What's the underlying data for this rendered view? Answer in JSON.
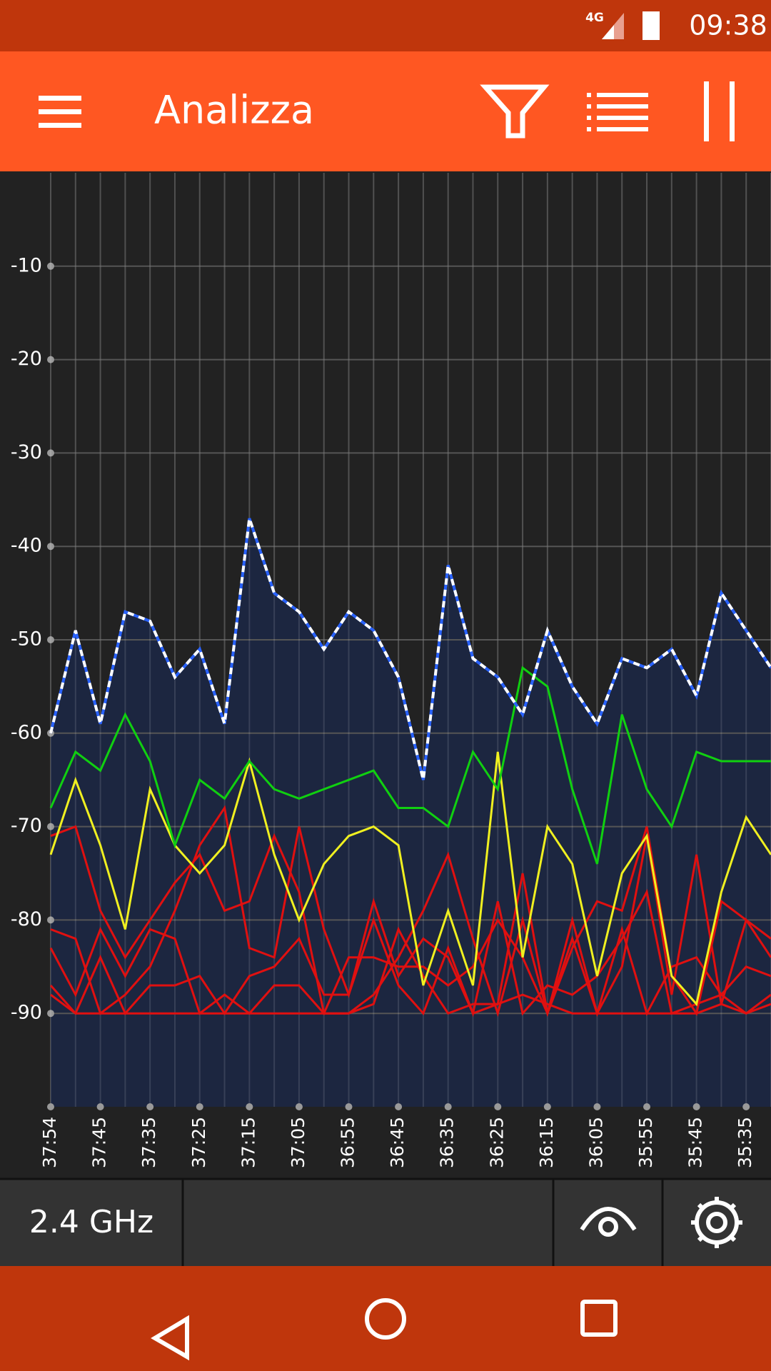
{
  "status_bar": {
    "network": "4G",
    "time": "09:38"
  },
  "app_bar": {
    "title": "Analizza"
  },
  "chart_data": {
    "type": "line",
    "categories": [
      "37:54",
      null,
      "37:45",
      null,
      "37:35",
      null,
      "37:25",
      null,
      "37:15",
      null,
      "37:05",
      null,
      "36:55",
      null,
      "36:45",
      null,
      "36:35",
      null,
      "36:25",
      null,
      "36:15",
      null,
      "36:05",
      null,
      "35:55",
      null,
      "35:45",
      null,
      "35:35",
      null
    ],
    "ylim": [
      -100,
      0
    ],
    "yticks": [
      -90,
      -80,
      -70,
      -60,
      -50,
      -40,
      -30,
      -20,
      -10
    ],
    "grid": true,
    "series": [
      {
        "color": "#e01010",
        "values": [
          -87,
          -90,
          -90,
          -90,
          -90,
          -90,
          -90,
          -90,
          -90,
          -90,
          -90,
          -90,
          -90,
          -89,
          -81,
          -86,
          -90,
          -89,
          -89,
          -88,
          -89,
          -90,
          -90,
          -90,
          -90,
          -90,
          -90,
          -89,
          -90,
          -89
        ]
      },
      {
        "color": "#e01010",
        "values": [
          -88,
          -90,
          -84,
          -90,
          -87,
          -87,
          -86,
          -90,
          -86,
          -85,
          -82,
          -88,
          -88,
          -80,
          -87,
          -90,
          -83,
          -90,
          -78,
          -90,
          -87,
          -88,
          -86,
          -82,
          -77,
          -90,
          -89,
          -88,
          -85,
          -86
        ]
      },
      {
        "color": "#e01010",
        "values": [
          -83,
          -88,
          -81,
          -86,
          -81,
          -82,
          -90,
          -88,
          -90,
          -87,
          -87,
          -90,
          -84,
          -84,
          -85,
          -85,
          -87,
          -85,
          -80,
          -84,
          -90,
          -82,
          -90,
          -81,
          -90,
          -85,
          -84,
          -88,
          -90,
          -88
        ]
      },
      {
        "color": "#e01010",
        "values": [
          -81,
          -82,
          -90,
          -88,
          -85,
          -79,
          -72,
          -68,
          -83,
          -84,
          -70,
          -81,
          -88,
          -78,
          -86,
          -82,
          -84,
          -90,
          -89,
          -75,
          -90,
          -80,
          -90,
          -85,
          -71,
          -88,
          -73,
          -89,
          -80,
          -84
        ]
      },
      {
        "color": "#e01010",
        "values": [
          -71,
          -70,
          -79,
          -84,
          -80,
          -76,
          -73,
          -79,
          -78,
          -71,
          -77,
          -90,
          -90,
          -88,
          -84,
          -79,
          -73,
          -82,
          -90,
          -80,
          -90,
          -83,
          -78,
          -79,
          -70,
          -86,
          -90,
          -78,
          -80,
          -82
        ]
      },
      {
        "color": "#f0f020",
        "values": [
          -73,
          -65,
          -72,
          -81,
          -66,
          -72,
          -75,
          -72,
          -63,
          -73,
          -80,
          -74,
          -71,
          -70,
          -72,
          -87,
          -79,
          -87,
          -62,
          -84,
          -70,
          -74,
          -86,
          -75,
          -71,
          -86,
          -89,
          -77,
          -69,
          -73
        ]
      },
      {
        "color": "#10d010",
        "values": [
          -68,
          -62,
          -64,
          -58,
          -63,
          -72,
          -65,
          -67,
          -63,
          -66,
          -67,
          -66,
          -65,
          -64,
          -68,
          -68,
          -70,
          -62,
          -66,
          -53,
          -55,
          -66,
          -74,
          -58,
          -66,
          -70,
          -62,
          -63,
          -63,
          -63
        ]
      },
      {
        "color": "#ffffff",
        "fill": "#1c2640",
        "values": [
          -60,
          -49,
          -59,
          -47,
          -48,
          -54,
          -51,
          -59,
          -37,
          -45,
          -47,
          -51,
          -47,
          -49,
          -54,
          -65,
          -42,
          -52,
          -54,
          -58,
          -49,
          -55,
          -59,
          -52,
          -53,
          -51,
          -56,
          -45,
          -49,
          -53
        ]
      }
    ]
  },
  "bottom_bar": {
    "band": "2.4 GHz"
  }
}
